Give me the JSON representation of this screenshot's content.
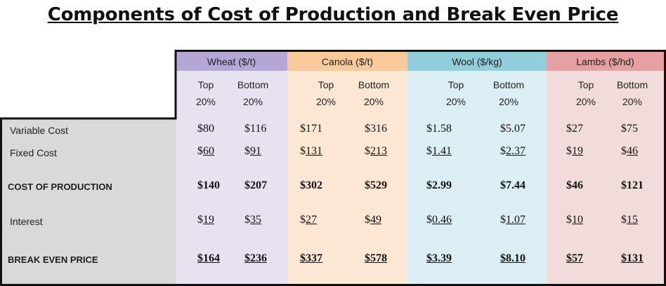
{
  "title": "Components of Cost of Production and Break Even Price",
  "colors": {
    "wheat_header": "#b4a7d6",
    "wheat_body": "#e7e1f0",
    "canola_header": "#f9cb9c",
    "canola_body": "#fce6d4",
    "wool_header": "#92cddc",
    "wool_body": "#dbeef3",
    "lambs_header": "#e6a0a0",
    "lambs_body": "#f2dcdb",
    "label_column": "#d9d9d9"
  },
  "columns": [
    {
      "header": "Wheat ($/t)",
      "sub": [
        [
          "Top",
          "20%"
        ],
        [
          "Bottom",
          "20%"
        ]
      ]
    },
    {
      "header": "Canola ($/t)",
      "sub": [
        [
          "Top",
          "20%"
        ],
        [
          "Bottom",
          "20%"
        ]
      ]
    },
    {
      "header": "Wool ($/kg)",
      "sub": [
        [
          "Top",
          "20%"
        ],
        [
          "Bottom",
          "20%"
        ]
      ]
    },
    {
      "header": "Lambs ($/hd)",
      "sub": [
        [
          "Top",
          "20%"
        ],
        [
          "Bottom",
          "20%"
        ]
      ]
    }
  ],
  "rows": [
    {
      "label": "Variable Cost",
      "bold": false,
      "values": [
        {
          "prefix": "$80",
          "under": ""
        },
        {
          "prefix": "$116",
          "under": ""
        },
        {
          "prefix": "$171",
          "under": ""
        },
        {
          "prefix": "$316",
          "under": ""
        },
        {
          "prefix": "$1.58",
          "under": ""
        },
        {
          "prefix": "$5.07",
          "under": ""
        },
        {
          "prefix": "$27",
          "under": ""
        },
        {
          "prefix": "$75",
          "under": ""
        }
      ]
    },
    {
      "label": "Fixed Cost",
      "bold": false,
      "values": [
        {
          "prefix": "$",
          "under": "60"
        },
        {
          "prefix": "$",
          "under": "91"
        },
        {
          "prefix": "$",
          "under": "131"
        },
        {
          "prefix": "$",
          "under": "213"
        },
        {
          "prefix": "$",
          "under": "1.41"
        },
        {
          "prefix": "$",
          "under": "2.37"
        },
        {
          "prefix": "$",
          "under": "19"
        },
        {
          "prefix": "$",
          "under": "46"
        }
      ]
    },
    {
      "label": "COST OF PRODUCTION",
      "bold": true,
      "values": [
        {
          "prefix": "$140",
          "under": ""
        },
        {
          "prefix": "$207",
          "under": ""
        },
        {
          "prefix": "$302",
          "under": ""
        },
        {
          "prefix": "$529",
          "under": ""
        },
        {
          "prefix": "$2.99",
          "under": ""
        },
        {
          "prefix": "$7.44",
          "under": ""
        },
        {
          "prefix": "$46",
          "under": ""
        },
        {
          "prefix": "$121",
          "under": ""
        }
      ]
    },
    {
      "label": "Interest",
      "bold": false,
      "values": [
        {
          "prefix": "$",
          "under": "19"
        },
        {
          "prefix": "$",
          "under": "35"
        },
        {
          "prefix": "$",
          "under": "27"
        },
        {
          "prefix": "$",
          "under": "49"
        },
        {
          "prefix": "$",
          "under": "0.46"
        },
        {
          "prefix": "$",
          "under": "1.07"
        },
        {
          "prefix": "$",
          "under": "10"
        },
        {
          "prefix": "$",
          "under": "15"
        }
      ]
    },
    {
      "label": "BREAK EVEN PRICE",
      "bold": true,
      "values": [
        {
          "prefix": "",
          "under": "$164"
        },
        {
          "prefix": "",
          "under": "$236"
        },
        {
          "prefix": "",
          "under": "$337"
        },
        {
          "prefix": "",
          "under": "$578"
        },
        {
          "prefix": "",
          "under": "$3.39"
        },
        {
          "prefix": "",
          "under": "$8.10"
        },
        {
          "prefix": "",
          "under": "$57"
        },
        {
          "prefix": "",
          "under": "$131"
        }
      ]
    }
  ]
}
